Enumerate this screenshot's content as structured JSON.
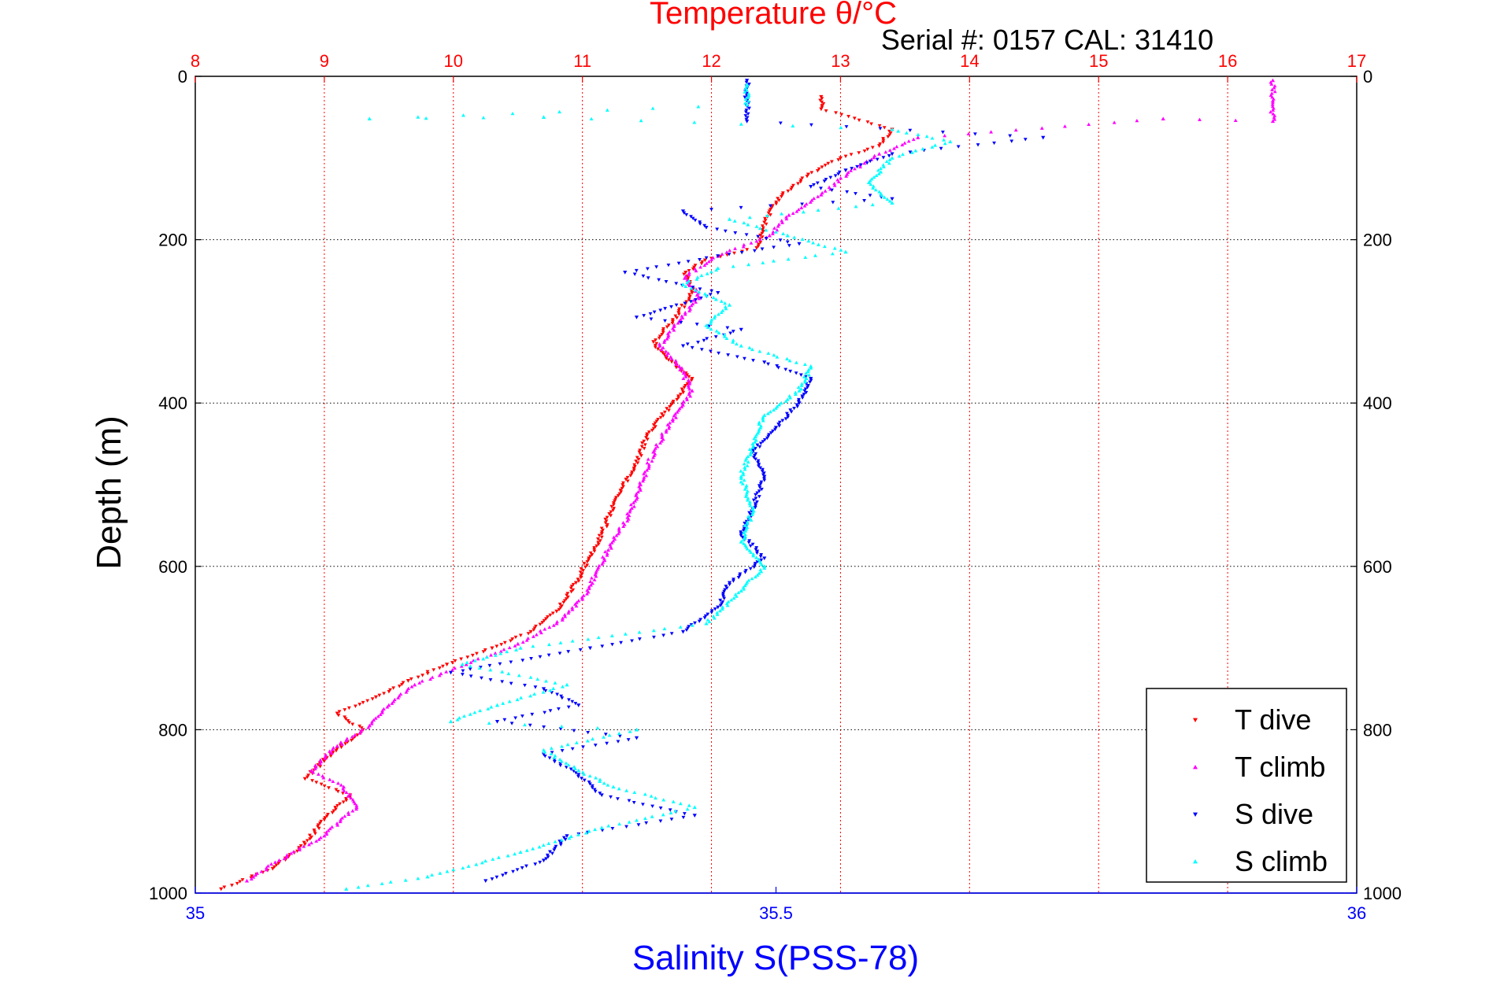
{
  "chart_data": {
    "type": "scatter",
    "title": "Temperature θ/°C",
    "subtitle": "Serial #: 0157  CAL: 31410",
    "xlabel": "Salinity S(PSS-78)",
    "ylabel": "Depth (m)",
    "x_top": {
      "label": "Temperature θ/°C",
      "range": [
        8,
        17
      ],
      "ticks": [
        "8",
        "9",
        "10",
        "11",
        "12",
        "13",
        "14",
        "15",
        "16",
        "17"
      ],
      "color": "#ff0000"
    },
    "x_bottom": {
      "label": "Salinity S(PSS-78)",
      "range": [
        35,
        36
      ],
      "ticks": [
        "35",
        "35.5",
        "36"
      ],
      "color": "#0000ff"
    },
    "y": {
      "label": "Depth (m)",
      "range": [
        0,
        1000
      ],
      "reversed": true,
      "ticks": [
        "0",
        "200",
        "400",
        "600",
        "800",
        "1000"
      ]
    },
    "grid": true,
    "legend": {
      "placement": "bottom-right",
      "entries": [
        "T dive",
        "T climb",
        "S dive",
        "S climb"
      ]
    },
    "series": [
      {
        "name": "T dive",
        "axis": "temperature",
        "color": "#ff0000",
        "marker": "triangle-down",
        "points": [
          [
            12.85,
            25
          ],
          [
            12.85,
            40
          ],
          [
            13.4,
            65
          ],
          [
            13.3,
            85
          ],
          [
            13.0,
            100
          ],
          [
            12.75,
            120
          ],
          [
            12.55,
            145
          ],
          [
            12.45,
            165
          ],
          [
            12.4,
            190
          ],
          [
            12.35,
            210
          ],
          [
            11.95,
            225
          ],
          [
            11.8,
            240
          ],
          [
            11.85,
            265
          ],
          [
            11.7,
            300
          ],
          [
            11.55,
            325
          ],
          [
            11.65,
            345
          ],
          [
            11.85,
            370
          ],
          [
            11.7,
            400
          ],
          [
            11.5,
            440
          ],
          [
            11.4,
            480
          ],
          [
            11.25,
            520
          ],
          [
            11.15,
            560
          ],
          [
            11.05,
            590
          ],
          [
            10.95,
            620
          ],
          [
            10.8,
            655
          ],
          [
            10.6,
            680
          ],
          [
            10.3,
            700
          ],
          [
            9.95,
            720
          ],
          [
            9.65,
            740
          ],
          [
            9.4,
            760
          ],
          [
            9.1,
            780
          ],
          [
            9.3,
            800
          ],
          [
            9.05,
            830
          ],
          [
            8.85,
            860
          ],
          [
            9.2,
            880
          ],
          [
            9.0,
            910
          ],
          [
            8.85,
            940
          ],
          [
            8.6,
            970
          ],
          [
            8.2,
            995
          ]
        ]
      },
      {
        "name": "T climb",
        "axis": "temperature",
        "color": "#ff00ff",
        "marker": "triangle-up",
        "points": [
          [
            16.35,
            5
          ],
          [
            16.35,
            30
          ],
          [
            16.35,
            55
          ],
          [
            15.5,
            52
          ],
          [
            13.6,
            75
          ],
          [
            13.3,
            95
          ],
          [
            13.05,
            120
          ],
          [
            12.85,
            145
          ],
          [
            12.6,
            170
          ],
          [
            12.45,
            195
          ],
          [
            12.05,
            220
          ],
          [
            11.8,
            245
          ],
          [
            11.9,
            270
          ],
          [
            11.75,
            300
          ],
          [
            11.6,
            330
          ],
          [
            11.75,
            355
          ],
          [
            11.85,
            385
          ],
          [
            11.7,
            420
          ],
          [
            11.55,
            460
          ],
          [
            11.45,
            500
          ],
          [
            11.35,
            540
          ],
          [
            11.2,
            580
          ],
          [
            11.1,
            610
          ],
          [
            11.0,
            640
          ],
          [
            10.8,
            670
          ],
          [
            10.5,
            695
          ],
          [
            10.1,
            720
          ],
          [
            9.7,
            745
          ],
          [
            9.5,
            770
          ],
          [
            9.35,
            795
          ],
          [
            9.1,
            820
          ],
          [
            8.9,
            850
          ],
          [
            9.15,
            870
          ],
          [
            9.25,
            895
          ],
          [
            9.0,
            930
          ],
          [
            8.65,
            960
          ],
          [
            8.4,
            985
          ]
        ]
      },
      {
        "name": "S dive",
        "axis": "salinity",
        "color": "#0000ff",
        "marker": "triangle-down",
        "points": [
          [
            35.475,
            5
          ],
          [
            35.475,
            30
          ],
          [
            35.475,
            55
          ],
          [
            35.73,
            75
          ],
          [
            35.6,
            95
          ],
          [
            35.56,
            115
          ],
          [
            35.53,
            135
          ],
          [
            35.6,
            150
          ],
          [
            35.42,
            165
          ],
          [
            35.44,
            185
          ],
          [
            35.52,
            205
          ],
          [
            35.45,
            220
          ],
          [
            35.37,
            240
          ],
          [
            35.45,
            265
          ],
          [
            35.38,
            295
          ],
          [
            35.47,
            310
          ],
          [
            35.42,
            330
          ],
          [
            35.49,
            350
          ],
          [
            35.53,
            370
          ],
          [
            35.52,
            400
          ],
          [
            35.5,
            430
          ],
          [
            35.48,
            460
          ],
          [
            35.49,
            490
          ],
          [
            35.48,
            530
          ],
          [
            35.47,
            560
          ],
          [
            35.49,
            590
          ],
          [
            35.46,
            620
          ],
          [
            35.45,
            650
          ],
          [
            35.42,
            680
          ],
          [
            35.34,
            700
          ],
          [
            35.22,
            730
          ],
          [
            35.3,
            750
          ],
          [
            35.33,
            770
          ],
          [
            35.26,
            790
          ],
          [
            35.38,
            810
          ],
          [
            35.3,
            830
          ],
          [
            35.33,
            855
          ],
          [
            35.35,
            880
          ],
          [
            35.43,
            905
          ],
          [
            35.32,
            930
          ],
          [
            35.3,
            960
          ],
          [
            35.25,
            985
          ]
        ]
      },
      {
        "name": "S climb",
        "axis": "salinity",
        "color": "#00ffff",
        "marker": "triangle-up",
        "points": [
          [
            35.475,
            10
          ],
          [
            35.475,
            35
          ],
          [
            35.15,
            52
          ],
          [
            35.3,
            50
          ],
          [
            35.6,
            65
          ],
          [
            35.65,
            80
          ],
          [
            35.6,
            100
          ],
          [
            35.58,
            130
          ],
          [
            35.6,
            155
          ],
          [
            35.46,
            175
          ],
          [
            35.51,
            195
          ],
          [
            35.56,
            215
          ],
          [
            35.45,
            235
          ],
          [
            35.42,
            255
          ],
          [
            35.46,
            280
          ],
          [
            35.44,
            305
          ],
          [
            35.47,
            330
          ],
          [
            35.53,
            355
          ],
          [
            35.52,
            385
          ],
          [
            35.49,
            415
          ],
          [
            35.48,
            450
          ],
          [
            35.47,
            490
          ],
          [
            35.48,
            530
          ],
          [
            35.47,
            570
          ],
          [
            35.49,
            600
          ],
          [
            35.47,
            630
          ],
          [
            35.44,
            670
          ],
          [
            35.28,
            700
          ],
          [
            35.23,
            720
          ],
          [
            35.32,
            745
          ],
          [
            35.26,
            770
          ],
          [
            35.22,
            790
          ],
          [
            35.38,
            800
          ],
          [
            35.3,
            825
          ],
          [
            35.33,
            850
          ],
          [
            35.36,
            870
          ],
          [
            35.43,
            895
          ],
          [
            35.35,
            920
          ],
          [
            35.28,
            950
          ],
          [
            35.2,
            980
          ],
          [
            35.13,
            995
          ]
        ]
      }
    ]
  }
}
